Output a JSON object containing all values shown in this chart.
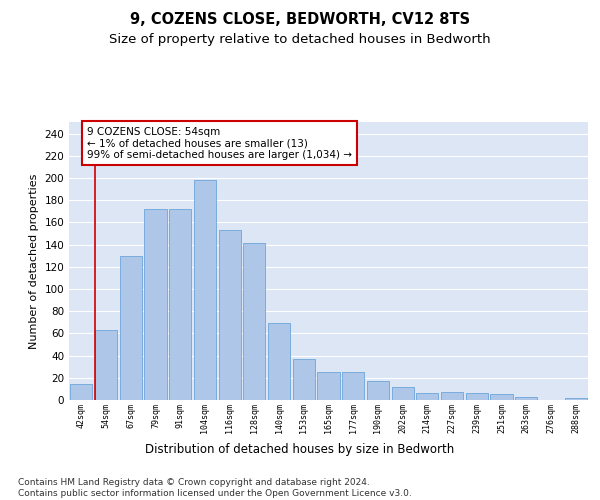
{
  "title": "9, COZENS CLOSE, BEDWORTH, CV12 8TS",
  "subtitle": "Size of property relative to detached houses in Bedworth",
  "xlabel": "Distribution of detached houses by size in Bedworth",
  "ylabel": "Number of detached properties",
  "categories": [
    "42sqm",
    "54sqm",
    "67sqm",
    "79sqm",
    "91sqm",
    "104sqm",
    "116sqm",
    "128sqm",
    "140sqm",
    "153sqm",
    "165sqm",
    "177sqm",
    "190sqm",
    "202sqm",
    "214sqm",
    "227sqm",
    "239sqm",
    "251sqm",
    "263sqm",
    "276sqm",
    "288sqm"
  ],
  "values": [
    14,
    63,
    130,
    172,
    172,
    198,
    153,
    141,
    69,
    37,
    25,
    25,
    17,
    12,
    6,
    7,
    6,
    5,
    3,
    0,
    2
  ],
  "bar_color": "#aec6e8",
  "bar_edge_color": "#5b9bd5",
  "background_color": "#ffffff",
  "plot_bg_color": "#dce6f5",
  "grid_color": "#ffffff",
  "vline_x_index": 1,
  "vline_color": "#cc0000",
  "annotation_box_color": "#cc0000",
  "annotation_text": "9 COZENS CLOSE: 54sqm\n← 1% of detached houses are smaller (13)\n99% of semi-detached houses are larger (1,034) →",
  "annotation_fontsize": 7.5,
  "ylim": [
    0,
    250
  ],
  "yticks": [
    0,
    20,
    40,
    60,
    80,
    100,
    120,
    140,
    160,
    180,
    200,
    220,
    240
  ],
  "footer_text": "Contains HM Land Registry data © Crown copyright and database right 2024.\nContains public sector information licensed under the Open Government Licence v3.0.",
  "title_fontsize": 10.5,
  "subtitle_fontsize": 9.5,
  "xlabel_fontsize": 8.5,
  "ylabel_fontsize": 8,
  "footer_fontsize": 6.5
}
